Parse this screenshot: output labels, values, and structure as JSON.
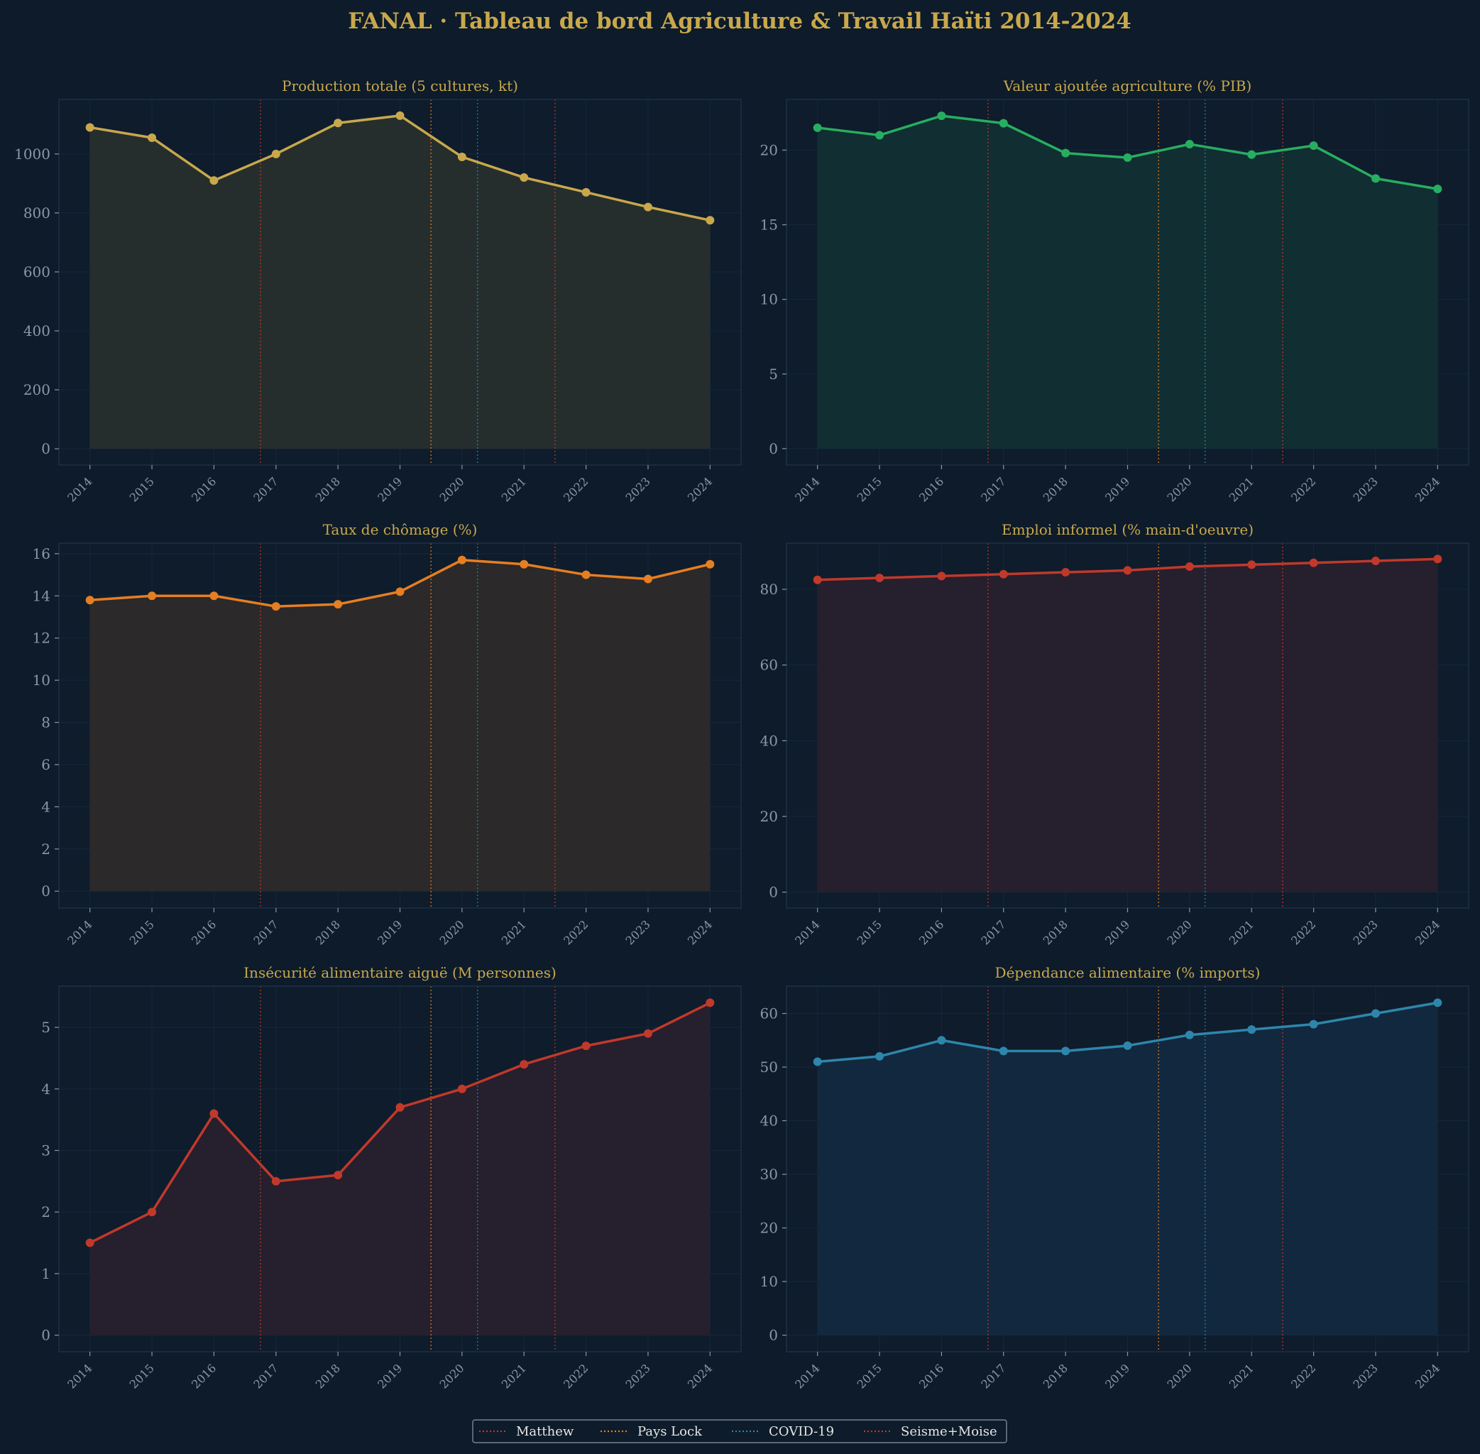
{
  "title": "FANAL · Tableau de bord Agriculture & Travail Haïti 2014-2024",
  "colors": {
    "background": "#0d1b2a",
    "panel": "#0e1c2c",
    "title": "#c9a84c",
    "tick": "#8d97a5",
    "grid": "#17283a",
    "frame": "#1f3044"
  },
  "events": [
    {
      "name": "Matthew",
      "x": 2016.75,
      "color": "#c0392b"
    },
    {
      "name": "Pays Lock",
      "x": 2019.5,
      "color": "#e67e22"
    },
    {
      "name": "COVID-19",
      "x": 2020.25,
      "color": "#2e86ab"
    },
    {
      "name": "Seisme+Moise",
      "x": 2021.5,
      "color": "#c0392b"
    }
  ],
  "chart_data": [
    {
      "type": "area",
      "title": "Production totale (5 cultures, kt)",
      "color": "#c9a84c",
      "fill": "#262e2d",
      "x": [
        2014,
        2015,
        2016,
        2017,
        2018,
        2019,
        2020,
        2021,
        2022,
        2023,
        2024
      ],
      "y": [
        1090,
        1055,
        910,
        1000,
        1105,
        1130,
        990,
        920,
        870,
        820,
        775
      ],
      "ylim": [
        -55,
        1185
      ],
      "yticks": [
        0,
        200,
        400,
        600,
        800,
        1000
      ]
    },
    {
      "type": "area",
      "title": "Valeur ajoutée agriculture (% PIB)",
      "color": "#27ae60",
      "fill": "#112e32",
      "x": [
        2014,
        2015,
        2016,
        2017,
        2018,
        2019,
        2020,
        2021,
        2022,
        2023,
        2024
      ],
      "y": [
        21.5,
        21.0,
        22.3,
        21.8,
        19.8,
        19.5,
        20.4,
        19.7,
        20.3,
        18.1,
        17.4
      ],
      "ylim": [
        -1.1,
        23.4
      ],
      "yticks": [
        0,
        5,
        10,
        15,
        20
      ]
    },
    {
      "type": "area",
      "title": "Taux de chômage (%)",
      "color": "#e67e22",
      "fill": "#2b2929",
      "x": [
        2014,
        2015,
        2016,
        2017,
        2018,
        2019,
        2020,
        2021,
        2022,
        2023,
        2024
      ],
      "y": [
        13.8,
        14.0,
        14.0,
        13.5,
        13.6,
        14.2,
        15.7,
        15.5,
        15.0,
        14.8,
        15.5
      ],
      "ylim": [
        -0.8,
        16.5
      ],
      "yticks": [
        0,
        2,
        4,
        6,
        8,
        10,
        12,
        14,
        16
      ]
    },
    {
      "type": "area",
      "title": "Emploi informel (% main-d'oeuvre)",
      "color": "#c0392b",
      "fill": "#261f2d",
      "x": [
        2014,
        2015,
        2016,
        2017,
        2018,
        2019,
        2020,
        2021,
        2022,
        2023,
        2024
      ],
      "y": [
        82.5,
        83.0,
        83.5,
        84.0,
        84.5,
        85.0,
        86.0,
        86.5,
        87.0,
        87.5,
        88.0
      ],
      "ylim": [
        -4.2,
        92.2
      ],
      "yticks": [
        0,
        20,
        40,
        60,
        80
      ]
    },
    {
      "type": "area",
      "title": "Insécurité alimentaire aiguë (M personnes)",
      "color": "#c0392b",
      "fill": "#261f2d",
      "x": [
        2014,
        2015,
        2016,
        2017,
        2018,
        2019,
        2020,
        2021,
        2022,
        2023,
        2024
      ],
      "y": [
        1.5,
        2.0,
        3.6,
        2.5,
        2.6,
        3.7,
        4.0,
        4.4,
        4.7,
        4.9,
        5.4
      ],
      "ylim": [
        -0.27,
        5.67
      ],
      "yticks": [
        0,
        1,
        2,
        3,
        4,
        5
      ]
    },
    {
      "type": "area",
      "title": "Dépendance alimentaire (% imports)",
      "color": "#2e86ab",
      "fill": "#12283e",
      "x": [
        2014,
        2015,
        2016,
        2017,
        2018,
        2019,
        2020,
        2021,
        2022,
        2023,
        2024
      ],
      "y": [
        51,
        52,
        55,
        53,
        53,
        54,
        56,
        57,
        58,
        60,
        62
      ],
      "ylim": [
        -3.1,
        65.1
      ],
      "yticks": [
        0,
        10,
        20,
        30,
        40,
        50,
        60
      ]
    }
  ]
}
